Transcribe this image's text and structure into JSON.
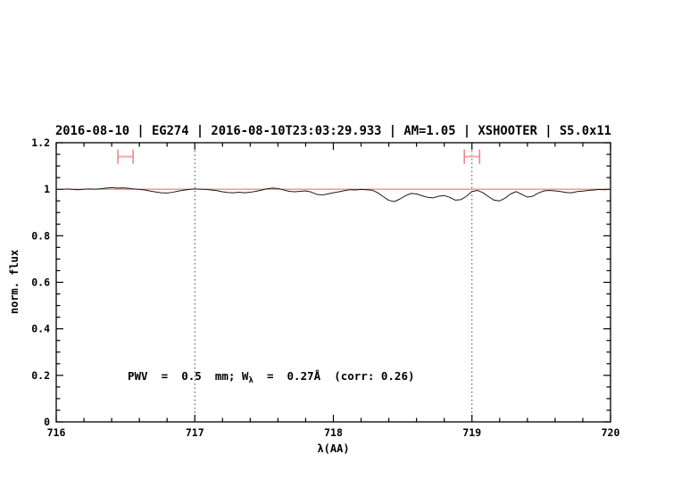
{
  "header": {
    "title": "2016-08-10 | EG274 | 2016-08-10T23:03:29.933 | AM=1.05 | XSHOOTER | S5.0x11",
    "title_color": "#2222CC"
  },
  "annotation": {
    "part1": "PWV  =  0.5  mm; W",
    "lambda_sub": "λ",
    "part2": "  =  0.27Å  (corr: 0.26)",
    "color": "#2222CC"
  },
  "chart_data": {
    "type": "line",
    "title": "2016-08-10 | EG274 | 2016-08-10T23:03:29.933 | AM=1.05 | XSHOOTER | S5.0x11",
    "xlabel": "λ(AA)",
    "ylabel": "norm. flux",
    "xlim": [
      716,
      720
    ],
    "ylim": [
      0,
      1.2
    ],
    "x_major_ticks": [
      716,
      717,
      718,
      719,
      720
    ],
    "x_major_labels": [
      "716",
      "717",
      "718",
      "719",
      "720"
    ],
    "x_minor_step": 0.2,
    "y_major_ticks": [
      0,
      0.2,
      0.4,
      0.6,
      0.8,
      1,
      1.2
    ],
    "y_major_labels": [
      "0",
      "0.2",
      "0.4",
      "0.6",
      "0.8",
      "1",
      "1.2"
    ],
    "y_minor_step": 0.05,
    "grid": "off",
    "legend": "none",
    "dotted_vlines": {
      "x": [
        717,
        719
      ],
      "color": "#444444"
    },
    "series": [
      {
        "name": "observed-spectrum",
        "color": "#1A1A1A",
        "x_start": 716,
        "x_step": 0.04,
        "values": [
          1.0,
          0.999,
          1.001,
          0.999,
          0.998,
          1.0,
          1.001,
          1.0,
          1.002,
          1.005,
          1.007,
          1.005,
          1.006,
          1.004,
          1.001,
          0.999,
          0.997,
          0.992,
          0.988,
          0.985,
          0.984,
          0.987,
          0.992,
          0.996,
          0.999,
          1.001,
          1.0,
          0.999,
          0.997,
          0.994,
          0.989,
          0.986,
          0.985,
          0.987,
          0.985,
          0.987,
          0.991,
          0.996,
          1.002,
          1.005,
          1.003,
          0.997,
          0.991,
          0.989,
          0.991,
          0.993,
          0.988,
          0.978,
          0.975,
          0.98,
          0.985,
          0.989,
          0.994,
          0.998,
          0.997,
          0.999,
          0.998,
          0.996,
          0.985,
          0.968,
          0.952,
          0.947,
          0.958,
          0.972,
          0.982,
          0.98,
          0.972,
          0.965,
          0.963,
          0.97,
          0.973,
          0.965,
          0.953,
          0.955,
          0.97,
          0.99,
          0.995,
          0.985,
          0.968,
          0.953,
          0.95,
          0.962,
          0.98,
          0.99,
          0.978,
          0.966,
          0.97,
          0.984,
          0.993,
          0.995,
          0.993,
          0.99,
          0.986,
          0.985,
          0.99,
          0.992,
          0.995,
          0.997,
          0.999,
          0.998,
          1.0
        ]
      },
      {
        "name": "telluric-model-continuum",
        "color": "#E06868",
        "x": [
          716,
          720
        ],
        "values": [
          1.0,
          1.0
        ]
      }
    ],
    "range_markers": {
      "bar_color": "#F5AEAE",
      "cap_color": "#EC8A8A",
      "items": [
        {
          "x": 716.5,
          "y": 1.14,
          "halfwidth": 0.055
        },
        {
          "x": 719.0,
          "y": 1.14,
          "halfwidth": 0.055
        }
      ]
    }
  }
}
